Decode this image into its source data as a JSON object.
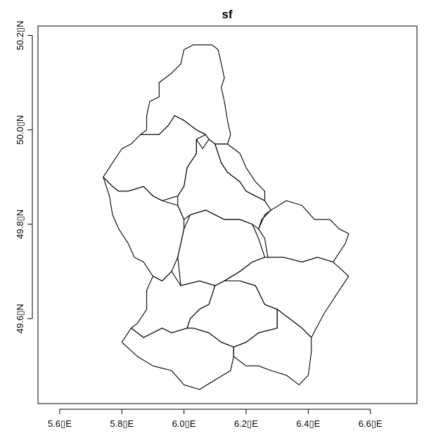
{
  "title": "sf",
  "chart_data": {
    "type": "map",
    "title": "sf",
    "xlim": [
      5.53,
      6.75
    ],
    "ylim": [
      49.42,
      50.22
    ],
    "x_ticks": [
      {
        "value": 5.6,
        "label": "5.6▯E"
      },
      {
        "value": 5.8,
        "label": "5.8▯E"
      },
      {
        "value": 6.0,
        "label": "6.0▯E"
      },
      {
        "value": 6.2,
        "label": "6.2▯E"
      },
      {
        "value": 6.4,
        "label": "6.4▯E"
      },
      {
        "value": 6.6,
        "label": "6.6▯E"
      }
    ],
    "y_ticks": [
      {
        "value": 49.6,
        "label": "49.6▯N"
      },
      {
        "value": 49.8,
        "label": "49.8▯N"
      },
      {
        "value": 50.0,
        "label": "50.0▯N"
      },
      {
        "value": 50.2,
        "label": "50.2▯N"
      }
    ],
    "regions": [
      {
        "coords": [
          [
            6.09,
            50.18
          ],
          [
            6.03,
            50.18
          ],
          [
            6.0,
            50.17
          ],
          [
            5.99,
            50.14
          ],
          [
            5.96,
            50.12
          ],
          [
            5.92,
            50.1
          ],
          [
            5.92,
            50.07
          ],
          [
            5.89,
            50.06
          ],
          [
            5.88,
            50.03
          ],
          [
            5.88,
            50.0
          ],
          [
            5.86,
            49.99
          ],
          [
            5.92,
            49.99
          ],
          [
            5.95,
            50.01
          ],
          [
            5.97,
            50.03
          ],
          [
            6.0,
            50.02
          ],
          [
            6.04,
            50.0
          ],
          [
            6.07,
            49.99
          ],
          [
            6.08,
            49.98
          ],
          [
            6.1,
            49.97
          ],
          [
            6.14,
            49.97
          ],
          [
            6.15,
            49.99
          ],
          [
            6.14,
            50.02
          ],
          [
            6.13,
            50.06
          ],
          [
            6.12,
            50.09
          ],
          [
            6.13,
            50.11
          ],
          [
            6.12,
            50.14
          ],
          [
            6.11,
            50.17
          ]
        ]
      },
      {
        "coords": [
          [
            5.86,
            49.99
          ],
          [
            5.83,
            49.97
          ],
          [
            5.8,
            49.96
          ],
          [
            5.77,
            49.93
          ],
          [
            5.74,
            49.9
          ],
          [
            5.77,
            49.88
          ],
          [
            5.79,
            49.87
          ],
          [
            5.82,
            49.87
          ],
          [
            5.87,
            49.88
          ],
          [
            5.9,
            49.86
          ],
          [
            5.93,
            49.85
          ],
          [
            5.98,
            49.86
          ],
          [
            6.0,
            49.88
          ],
          [
            6.01,
            49.92
          ],
          [
            6.04,
            49.95
          ],
          [
            6.04,
            49.98
          ],
          [
            6.07,
            49.99
          ],
          [
            6.04,
            50.0
          ],
          [
            6.0,
            50.02
          ],
          [
            5.97,
            50.03
          ],
          [
            5.95,
            50.01
          ],
          [
            5.92,
            49.99
          ]
        ]
      },
      {
        "coords": [
          [
            6.04,
            49.98
          ],
          [
            6.06,
            49.96
          ],
          [
            6.08,
            49.98
          ],
          [
            6.1,
            49.97
          ],
          [
            6.12,
            49.93
          ],
          [
            6.14,
            49.91
          ],
          [
            6.18,
            49.89
          ],
          [
            6.2,
            49.87
          ],
          [
            6.23,
            49.86
          ],
          [
            6.26,
            49.85
          ],
          [
            6.28,
            49.83
          ],
          [
            6.25,
            49.81
          ],
          [
            6.24,
            49.79
          ],
          [
            6.22,
            49.8
          ],
          [
            6.18,
            49.81
          ],
          [
            6.13,
            49.81
          ],
          [
            6.07,
            49.83
          ],
          [
            6.02,
            49.82
          ],
          [
            6.0,
            49.81
          ],
          [
            5.98,
            49.84
          ],
          [
            5.98,
            49.86
          ],
          [
            6.0,
            49.88
          ],
          [
            6.01,
            49.92
          ],
          [
            6.04,
            49.95
          ]
        ]
      },
      {
        "coords": [
          [
            6.1,
            49.97
          ],
          [
            6.14,
            49.97
          ],
          [
            6.16,
            49.96
          ],
          [
            6.18,
            49.95
          ],
          [
            6.2,
            49.92
          ],
          [
            6.23,
            49.89
          ],
          [
            6.26,
            49.87
          ],
          [
            6.26,
            49.85
          ],
          [
            6.23,
            49.86
          ],
          [
            6.2,
            49.87
          ],
          [
            6.18,
            49.89
          ],
          [
            6.14,
            49.91
          ],
          [
            6.12,
            49.93
          ]
        ]
      },
      {
        "coords": [
          [
            5.74,
            49.9
          ],
          [
            5.76,
            49.86
          ],
          [
            5.77,
            49.82
          ],
          [
            5.79,
            49.79
          ],
          [
            5.82,
            49.76
          ],
          [
            5.84,
            49.73
          ],
          [
            5.87,
            49.72
          ],
          [
            5.9,
            49.69
          ],
          [
            5.93,
            49.68
          ],
          [
            5.96,
            49.7
          ],
          [
            5.98,
            49.73
          ],
          [
            5.99,
            49.76
          ],
          [
            6.0,
            49.79
          ],
          [
            6.0,
            49.81
          ],
          [
            5.98,
            49.84
          ],
          [
            5.93,
            49.85
          ],
          [
            5.9,
            49.86
          ],
          [
            5.87,
            49.88
          ],
          [
            5.82,
            49.87
          ],
          [
            5.79,
            49.87
          ],
          [
            5.77,
            49.88
          ]
        ]
      },
      {
        "coords": [
          [
            6.02,
            49.82
          ],
          [
            6.07,
            49.83
          ],
          [
            6.13,
            49.81
          ],
          [
            6.18,
            49.81
          ],
          [
            6.22,
            49.8
          ],
          [
            6.24,
            49.77
          ],
          [
            6.26,
            49.73
          ],
          [
            6.22,
            49.72
          ],
          [
            6.18,
            49.7
          ],
          [
            6.13,
            49.68
          ],
          [
            6.1,
            49.67
          ],
          [
            6.05,
            49.68
          ],
          [
            5.99,
            49.67
          ],
          [
            5.98,
            49.73
          ],
          [
            5.99,
            49.76
          ],
          [
            6.0,
            49.79
          ]
        ]
      },
      {
        "coords": [
          [
            6.24,
            49.79
          ],
          [
            6.26,
            49.82
          ],
          [
            6.28,
            49.83
          ],
          [
            6.33,
            49.85
          ],
          [
            6.38,
            49.84
          ],
          [
            6.42,
            49.81
          ],
          [
            6.47,
            49.81
          ],
          [
            6.5,
            49.79
          ],
          [
            6.53,
            49.78
          ],
          [
            6.52,
            49.76
          ],
          [
            6.5,
            49.74
          ],
          [
            6.48,
            49.72
          ],
          [
            6.43,
            49.73
          ],
          [
            6.38,
            49.72
          ],
          [
            6.32,
            49.73
          ],
          [
            6.27,
            49.73
          ],
          [
            6.26,
            49.77
          ]
        ]
      },
      {
        "coords": [
          [
            6.13,
            49.68
          ],
          [
            6.18,
            49.7
          ],
          [
            6.22,
            49.72
          ],
          [
            6.26,
            49.73
          ],
          [
            6.32,
            49.73
          ],
          [
            6.38,
            49.72
          ],
          [
            6.43,
            49.73
          ],
          [
            6.48,
            49.72
          ],
          [
            6.53,
            49.69
          ],
          [
            6.49,
            49.65
          ],
          [
            6.45,
            49.61
          ],
          [
            6.41,
            49.56
          ],
          [
            6.38,
            49.58
          ],
          [
            6.34,
            49.6
          ],
          [
            6.3,
            49.62
          ],
          [
            6.26,
            49.63
          ],
          [
            6.23,
            49.67
          ],
          [
            6.18,
            49.68
          ]
        ]
      },
      {
        "coords": [
          [
            5.93,
            49.68
          ],
          [
            5.9,
            49.69
          ],
          [
            5.88,
            49.66
          ],
          [
            5.88,
            49.62
          ],
          [
            5.85,
            49.59
          ],
          [
            5.83,
            49.58
          ],
          [
            5.87,
            49.56
          ],
          [
            5.9,
            49.57
          ],
          [
            5.93,
            49.58
          ],
          [
            5.96,
            49.57
          ],
          [
            6.01,
            49.58
          ],
          [
            6.02,
            49.6
          ],
          [
            6.05,
            49.62
          ],
          [
            6.08,
            49.63
          ],
          [
            6.1,
            49.67
          ],
          [
            6.05,
            49.68
          ],
          [
            5.99,
            49.67
          ],
          [
            5.96,
            49.7
          ]
        ]
      },
      {
        "coords": [
          [
            6.1,
            49.67
          ],
          [
            6.13,
            49.68
          ],
          [
            6.18,
            49.68
          ],
          [
            6.23,
            49.67
          ],
          [
            6.26,
            49.63
          ],
          [
            6.3,
            49.62
          ],
          [
            6.3,
            49.58
          ],
          [
            6.24,
            49.57
          ],
          [
            6.2,
            49.55
          ],
          [
            6.16,
            49.54
          ],
          [
            6.12,
            49.55
          ],
          [
            6.08,
            49.57
          ],
          [
            6.03,
            49.58
          ],
          [
            6.01,
            49.58
          ],
          [
            6.02,
            49.6
          ],
          [
            6.05,
            49.62
          ],
          [
            6.08,
            49.63
          ]
        ]
      },
      {
        "coords": [
          [
            5.83,
            49.58
          ],
          [
            5.8,
            49.55
          ],
          [
            5.85,
            49.52
          ],
          [
            5.9,
            49.5
          ],
          [
            5.96,
            49.49
          ],
          [
            6.0,
            49.46
          ],
          [
            6.05,
            49.45
          ],
          [
            6.1,
            49.47
          ],
          [
            6.15,
            49.49
          ],
          [
            6.16,
            49.52
          ],
          [
            6.16,
            49.54
          ],
          [
            6.12,
            49.55
          ],
          [
            6.08,
            49.57
          ],
          [
            6.03,
            49.58
          ],
          [
            6.01,
            49.58
          ],
          [
            5.96,
            49.57
          ],
          [
            5.93,
            49.58
          ],
          [
            5.9,
            49.57
          ],
          [
            5.87,
            49.56
          ]
        ]
      },
      {
        "coords": [
          [
            6.16,
            49.52
          ],
          [
            6.2,
            49.5
          ],
          [
            6.24,
            49.5
          ],
          [
            6.28,
            49.49
          ],
          [
            6.33,
            49.48
          ],
          [
            6.37,
            49.46
          ],
          [
            6.4,
            49.48
          ],
          [
            6.41,
            49.53
          ],
          [
            6.41,
            49.56
          ],
          [
            6.38,
            49.58
          ],
          [
            6.34,
            49.6
          ],
          [
            6.3,
            49.62
          ],
          [
            6.3,
            49.58
          ],
          [
            6.24,
            49.57
          ],
          [
            6.2,
            49.55
          ],
          [
            6.16,
            49.54
          ]
        ]
      }
    ]
  }
}
